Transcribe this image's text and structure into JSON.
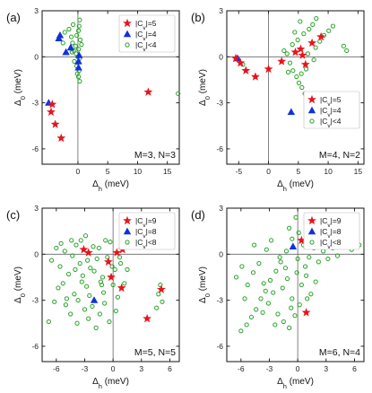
{
  "chart_data": [
    {
      "panel_label": "(a)",
      "type": "scatter",
      "note": "M=3, N=3",
      "xlabel": "Δh (meV)",
      "ylabel": "Δ0 (meV)",
      "xlim": [
        -6,
        17
      ],
      "ylim": [
        -7,
        3
      ],
      "xticks": [
        0,
        5,
        10,
        15
      ],
      "yticks": [
        -6,
        -3,
        0,
        3
      ],
      "legend_position": "top-right",
      "series": [
        {
          "name": "|Cv|=5",
          "marker": "star",
          "color": "#e8141b",
          "points": [
            [
              -4.5,
              -3.6
            ],
            [
              -3.8,
              -4.4
            ],
            [
              -2.8,
              -5.3
            ],
            [
              -4.3,
              -3.1
            ],
            [
              11.8,
              -2.3
            ]
          ]
        },
        {
          "name": "|Cv|=4",
          "marker": "triangle",
          "color": "#1030e0",
          "points": [
            [
              -4.9,
              -3.0
            ],
            [
              -3.2,
              1.2
            ],
            [
              -3.0,
              1.4
            ],
            [
              -2.0,
              0.3
            ],
            [
              -1.2,
              0.6
            ],
            [
              0.1,
              -0.3
            ],
            [
              0.1,
              -0.7
            ],
            [
              0.2,
              0.1
            ]
          ]
        },
        {
          "name": "|Cv|<4",
          "marker": "circle",
          "color": "#27a327",
          "points": [
            [
              0.3,
              2.4
            ],
            [
              0.2,
              2.0
            ],
            [
              0.1,
              1.7
            ],
            [
              -0.2,
              1.4
            ],
            [
              0.4,
              1.1
            ],
            [
              -0.9,
              0.9
            ],
            [
              -0.4,
              0.7
            ],
            [
              0.1,
              0.5
            ],
            [
              -1.0,
              0.3
            ],
            [
              -0.3,
              0.2
            ],
            [
              0.0,
              0.0
            ],
            [
              0.3,
              -0.1
            ],
            [
              -0.6,
              -0.3
            ],
            [
              -0.2,
              -0.6
            ],
            [
              0.2,
              -0.9
            ],
            [
              -0.1,
              -1.1
            ],
            [
              0.1,
              -1.3
            ],
            [
              0.3,
              -1.6
            ],
            [
              -0.7,
              0.4
            ],
            [
              -2.5,
              0.9
            ],
            [
              -2.2,
              1.6
            ],
            [
              -1.5,
              1.8
            ],
            [
              -0.8,
              2.1
            ],
            [
              0.6,
              0.8
            ],
            [
              -1.1,
              1.3
            ],
            [
              16.8,
              -2.4
            ]
          ]
        }
      ]
    },
    {
      "panel_label": "(b)",
      "type": "scatter",
      "note": "M=4, N=2",
      "xlabel": "Δh (meV)",
      "ylabel": "Δ0 (meV)",
      "xlim": [
        -7,
        16
      ],
      "ylim": [
        -7,
        3
      ],
      "xticks": [
        -5,
        0,
        5,
        10,
        15
      ],
      "yticks": [
        -6,
        -3,
        0,
        3
      ],
      "legend_position": "bottom-right",
      "series": [
        {
          "name": "|Cv|=5",
          "marker": "star",
          "color": "#e8141b",
          "points": [
            [
              -5.5,
              -0.1
            ],
            [
              -4.7,
              -0.4
            ],
            [
              -3.8,
              -0.9
            ],
            [
              -2.2,
              -1.3
            ],
            [
              0.0,
              -0.8
            ],
            [
              2.2,
              -0.3
            ],
            [
              4.5,
              0.3
            ],
            [
              5.4,
              0.5
            ],
            [
              5.7,
              0.1
            ],
            [
              6.2,
              -0.5
            ],
            [
              7.3,
              0.9
            ],
            [
              8.8,
              1.3
            ]
          ]
        },
        {
          "name": "|Cv|=4",
          "marker": "triangle",
          "color": "#1030e0",
          "points": [
            [
              -5.2,
              -0.1
            ],
            [
              3.8,
              -3.6
            ]
          ]
        },
        {
          "name": "|Cv|<4",
          "marker": "circle",
          "color": "#27a327",
          "points": [
            [
              -5.0,
              -0.2
            ],
            [
              -4.3,
              -0.5
            ],
            [
              2.6,
              0.4
            ],
            [
              3.1,
              0.2
            ],
            [
              3.6,
              -0.4
            ],
            [
              4.1,
              -0.9
            ],
            [
              4.7,
              -1.3
            ],
            [
              5.1,
              -1.7
            ],
            [
              5.6,
              -2.0
            ],
            [
              6.1,
              -2.4
            ],
            [
              3.3,
              -1.0
            ],
            [
              4.9,
              1.1
            ],
            [
              5.9,
              1.5
            ],
            [
              6.8,
              1.8
            ],
            [
              7.4,
              2.1
            ],
            [
              8.0,
              2.5
            ],
            [
              5.3,
              2.3
            ],
            [
              4.4,
              1.6
            ],
            [
              6.6,
              0.2
            ],
            [
              7.9,
              0.6
            ],
            [
              8.6,
              1.0
            ],
            [
              9.3,
              1.4
            ],
            [
              10.1,
              1.7
            ],
            [
              10.8,
              2.0
            ],
            [
              12.6,
              0.7
            ],
            [
              13.1,
              0.4
            ],
            [
              6.3,
              -0.8
            ],
            [
              7.6,
              -0.2
            ],
            [
              4.0,
              0.8
            ],
            [
              5.5,
              -1.1
            ]
          ]
        }
      ]
    },
    {
      "panel_label": "(c)",
      "type": "scatter",
      "note": "M=5, N=5",
      "xlabel": "Δh (meV)",
      "ylabel": "Δ0 (meV)",
      "xlim": [
        -7.5,
        7
      ],
      "ylim": [
        -7,
        3
      ],
      "xticks": [
        -6,
        -3,
        0,
        3,
        6
      ],
      "yticks": [
        -6,
        -3,
        0,
        3
      ],
      "legend_position": "top-right",
      "series": [
        {
          "name": "|Cv|=9",
          "marker": "star",
          "color": "#e8141b",
          "points": [
            [
              -3.1,
              0.3
            ],
            [
              -2.6,
              0.1
            ],
            [
              -0.5,
              -0.5
            ],
            [
              0.4,
              0.1
            ],
            [
              1.0,
              0.3
            ],
            [
              -0.2,
              -1.5
            ],
            [
              0.9,
              -2.2
            ],
            [
              3.6,
              -4.2
            ],
            [
              5.1,
              -2.3
            ]
          ]
        },
        {
          "name": "|Cv|=8",
          "marker": "triangle",
          "color": "#1030e0",
          "points": [
            [
              -2.0,
              -3.0
            ]
          ]
        },
        {
          "name": "|Cv|<8",
          "marker": "circle",
          "color": "#27a327",
          "points": [
            [
              -6.5,
              -0.4
            ],
            [
              -6.0,
              0.4
            ],
            [
              -5.6,
              -0.8
            ],
            [
              -5.1,
              0.2
            ],
            [
              -4.7,
              -1.3
            ],
            [
              -4.3,
              -0.1
            ],
            [
              -3.9,
              0.6
            ],
            [
              -3.5,
              -0.6
            ],
            [
              -3.2,
              -1.4
            ],
            [
              -2.8,
              -2.1
            ],
            [
              -2.4,
              -0.9
            ],
            [
              -2.1,
              0.5
            ],
            [
              -1.7,
              -0.3
            ],
            [
              -1.3,
              -1.8
            ],
            [
              -1.0,
              -2.5
            ],
            [
              -0.6,
              -0.2
            ],
            [
              -0.3,
              0.8
            ],
            [
              0.2,
              -1.0
            ],
            [
              0.5,
              -2.8
            ],
            [
              0.8,
              -0.6
            ],
            [
              1.2,
              -1.9
            ],
            [
              -4.1,
              -2.6
            ],
            [
              -3.7,
              -3.0
            ],
            [
              -3.0,
              -3.6
            ],
            [
              -2.6,
              -4.2
            ],
            [
              -2.2,
              -3.4
            ],
            [
              -1.8,
              -4.8
            ],
            [
              -1.4,
              -3.9
            ],
            [
              -0.9,
              -3.2
            ],
            [
              -0.4,
              -4.4
            ],
            [
              0.3,
              -3.7
            ],
            [
              -5.3,
              -1.9
            ],
            [
              -4.9,
              -2.9
            ],
            [
              -4.5,
              -3.9
            ],
            [
              -6.8,
              -4.4
            ],
            [
              -6.2,
              -3.1
            ],
            [
              -5.8,
              -2.2
            ],
            [
              -3.4,
              0.9
            ],
            [
              -2.9,
              1.2
            ],
            [
              -1.5,
              0.4
            ],
            [
              -0.8,
              0.9
            ],
            [
              4.8,
              -2.6
            ],
            [
              5.2,
              -3.1
            ],
            [
              5.0,
              -2.0
            ],
            [
              4.6,
              -3.5
            ],
            [
              -3.3,
              -1.8
            ],
            [
              -2.0,
              -1.1
            ],
            [
              -1.1,
              -1.5
            ],
            [
              0.0,
              -2.0
            ],
            [
              -4.0,
              -1.0
            ],
            [
              -5.0,
              -3.3
            ],
            [
              -1.2,
              -2.0
            ],
            [
              -2.5,
              -2.7
            ],
            [
              -3.8,
              -4.5
            ],
            [
              -0.1,
              -0.8
            ],
            [
              1.5,
              -1.0
            ],
            [
              -4.4,
              0.9
            ],
            [
              -5.5,
              0.7
            ],
            [
              -2.7,
              -0.4
            ],
            [
              0.7,
              -0.2
            ]
          ]
        }
      ]
    },
    {
      "panel_label": "(d)",
      "type": "scatter",
      "note": "M=6, N=4",
      "xlabel": "Δh (meV)",
      "ylabel": "Δ0 (meV)",
      "xlim": [
        -7.5,
        7
      ],
      "ylim": [
        -7,
        3
      ],
      "xticks": [
        -6,
        -3,
        0,
        3,
        6
      ],
      "yticks": [
        -6,
        -3,
        0,
        3
      ],
      "legend_position": "top-right",
      "series": [
        {
          "name": "|Cv|=9",
          "marker": "star",
          "color": "#e8141b",
          "points": [
            [
              0.4,
              0.9
            ],
            [
              0.9,
              -3.8
            ]
          ]
        },
        {
          "name": "|Cv|=8",
          "marker": "triangle",
          "color": "#1030e0",
          "points": [
            [
              -0.5,
              0.5
            ]
          ]
        },
        {
          "name": "|Cv|<8",
          "marker": "circle",
          "color": "#27a327",
          "points": [
            [
              -0.2,
              2.4
            ],
            [
              -0.9,
              1.7
            ],
            [
              -0.6,
              1.0
            ],
            [
              0.1,
              1.4
            ],
            [
              0.6,
              0.6
            ],
            [
              -1.2,
              0.2
            ],
            [
              -1.8,
              -0.5
            ],
            [
              -2.3,
              -1.1
            ],
            [
              -2.9,
              -1.7
            ],
            [
              -3.4,
              -2.4
            ],
            [
              -3.9,
              -2.9
            ],
            [
              -4.4,
              -3.6
            ],
            [
              -4.9,
              -4.1
            ],
            [
              -5.4,
              -4.6
            ],
            [
              -6.0,
              -5.0
            ],
            [
              -6.5,
              -1.5
            ],
            [
              -5.9,
              -0.8
            ],
            [
              -5.3,
              -2.0
            ],
            [
              -4.7,
              -1.2
            ],
            [
              -4.1,
              -0.6
            ],
            [
              -3.6,
              -1.9
            ],
            [
              -3.1,
              -3.2
            ],
            [
              -2.6,
              -2.5
            ],
            [
              -2.1,
              -3.9
            ],
            [
              -1.6,
              -2.2
            ],
            [
              -1.1,
              -1.6
            ],
            [
              -0.6,
              -2.9
            ],
            [
              -0.1,
              -1.2
            ],
            [
              0.4,
              -2.0
            ],
            [
              0.9,
              -1.4
            ],
            [
              1.4,
              -2.6
            ],
            [
              1.9,
              -1.8
            ],
            [
              0.8,
              -0.8
            ],
            [
              1.2,
              -0.2
            ],
            [
              1.7,
              0.4
            ],
            [
              2.2,
              -0.5
            ],
            [
              2.7,
              0.2
            ],
            [
              3.2,
              -0.3
            ],
            [
              3.7,
              0.4
            ],
            [
              4.2,
              -0.1
            ],
            [
              4.7,
              0.5
            ],
            [
              5.2,
              0.9
            ],
            [
              5.7,
              0.3
            ],
            [
              6.2,
              1.1
            ],
            [
              6.5,
              0.6
            ],
            [
              -2.8,
              0.9
            ],
            [
              -3.3,
              0.3
            ],
            [
              -4.6,
              0.6
            ],
            [
              -1.5,
              -4.4
            ],
            [
              -0.9,
              -4.8
            ],
            [
              -0.3,
              -4.0
            ],
            [
              0.2,
              -3.3
            ],
            [
              -2.4,
              -4.6
            ],
            [
              -5.6,
              -2.9
            ],
            [
              -1.9,
              -0.2
            ],
            [
              -3.7,
              -3.8
            ],
            [
              0.0,
              -0.3
            ],
            [
              -0.7,
              -3.5
            ],
            [
              1.0,
              -2.9
            ],
            [
              -1.3,
              -0.9
            ]
          ]
        }
      ]
    }
  ]
}
